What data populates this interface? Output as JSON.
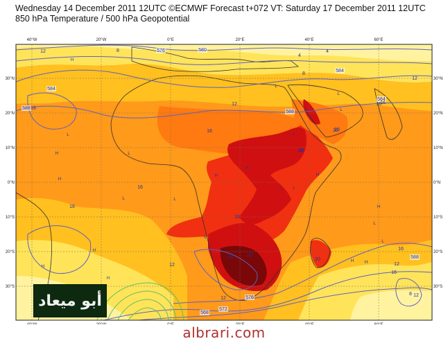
{
  "header": {
    "line1": "Wednesday 14 December 2011 12UTC ©ECMWF Forecast t+072 VT: Saturday 17 December 2011 12UTC",
    "line2": "850 hPa Temperature / 500 hPa Geopotential"
  },
  "map": {
    "lon_labels": [
      "40°W",
      "20°W",
      "0°E",
      "20°E",
      "40°E",
      "60°E"
    ],
    "lat_labels": [
      "30°N",
      "20°N",
      "10°N",
      "0°N",
      "10°S",
      "20°S",
      "30°S"
    ],
    "contour_labels": [
      "576",
      "580",
      "584",
      "588",
      "576",
      "572",
      "568",
      "588",
      "584",
      "584",
      "588"
    ],
    "temperature_labels": [
      "12",
      "8",
      "4",
      "12",
      "12",
      "16",
      "16",
      "16",
      "16",
      "20",
      "20",
      "16",
      "16",
      "16",
      "12",
      "12",
      "8",
      "8",
      "4",
      "24",
      "20",
      "24",
      "12",
      "16",
      "16",
      "20",
      "20",
      "12",
      "8"
    ],
    "pressure_marks": [
      "H",
      "H",
      "H",
      "H",
      "H",
      "H",
      "H",
      "H",
      "H",
      "H",
      "H",
      "H",
      "L",
      "L",
      "L",
      "L",
      "L",
      "L",
      "L",
      "L",
      "L",
      "L",
      "L",
      "L",
      "L"
    ],
    "colors": {
      "t4": "#fff3a0",
      "t8": "#ffe45a",
      "t12": "#ffc020",
      "t16": "#ff9a1a",
      "t20": "#ff7a10",
      "t24": "#f03010",
      "t28": "#d01010",
      "t32": "#7a0808",
      "contour": "#6060c0",
      "coast": "#303030"
    }
  },
  "logo": {
    "text": "أبو ميعاد"
  },
  "watermark": {
    "text": "albrari.com"
  }
}
